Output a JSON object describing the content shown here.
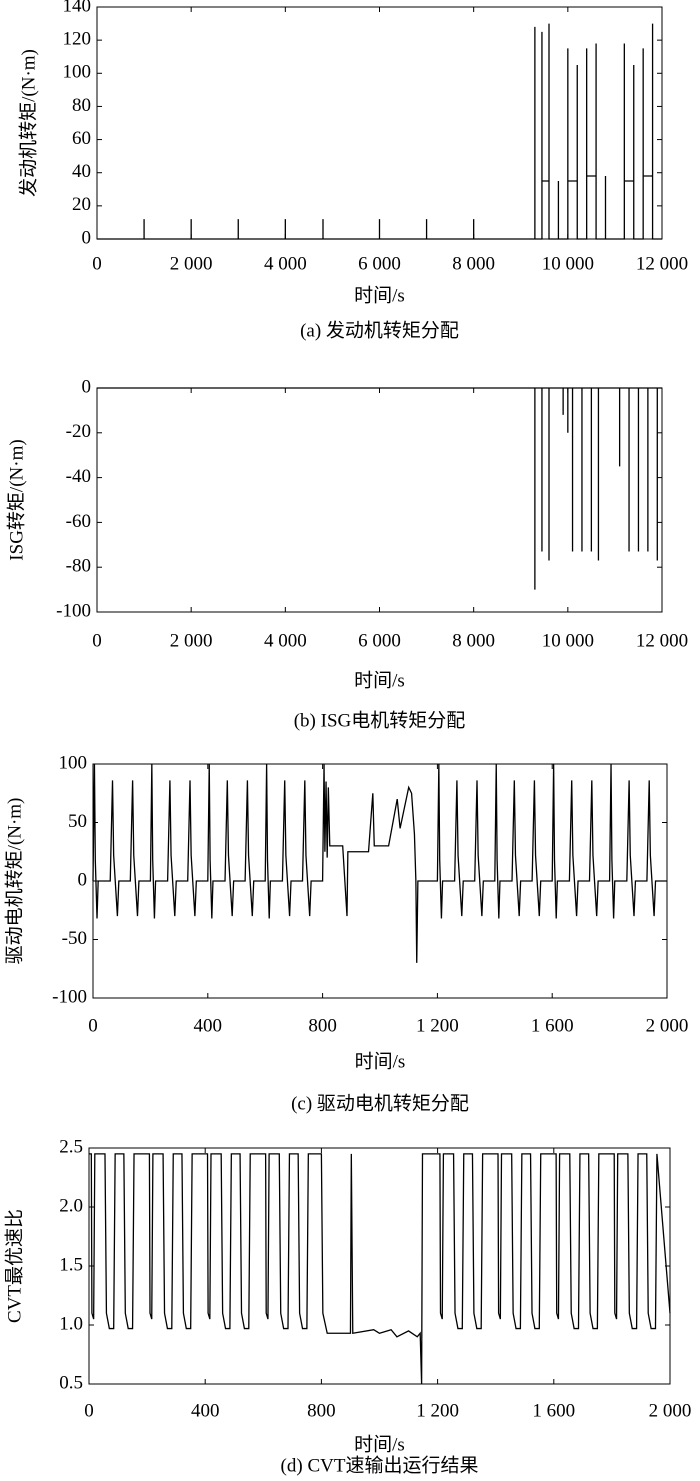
{
  "chart_data": [
    {
      "type": "line",
      "caption": "(a) 发动机转矩分配",
      "xlabel": "时间/s",
      "ylabel": "发动机转矩/(N·m)",
      "color": "#000000",
      "xlim": [
        0,
        12000
      ],
      "ylim": [
        0,
        140
      ],
      "xticks": [
        0,
        {
          "value": 2000,
          "label": "2 000"
        },
        {
          "value": 4000,
          "label": "4 000"
        },
        {
          "value": 6000,
          "label": "6 000"
        },
        {
          "value": 8000,
          "label": "8 000"
        },
        {
          "value": 10000,
          "label": "10 000"
        },
        {
          "value": 12000,
          "label": "12 000"
        }
      ],
      "yticks": [
        0,
        20,
        40,
        60,
        80,
        100,
        120,
        140
      ],
      "x": [
        0,
        1000,
        1000,
        1000,
        2000,
        2000,
        2000,
        3000,
        3000,
        3000,
        4000,
        4000,
        4000,
        4800,
        4800,
        4800,
        6000,
        6000,
        6000,
        7000,
        7000,
        7000,
        8000,
        8000,
        8000,
        9300,
        9300,
        9300,
        9450,
        9450,
        9450,
        9600,
        9600,
        9600,
        9800,
        9800,
        9800,
        10000,
        10000,
        10000,
        10200,
        10200,
        10200,
        10400,
        10400,
        10400,
        10600,
        10600,
        10600,
        10800,
        10800,
        10800,
        11200,
        11200,
        11200,
        11400,
        11400,
        11400,
        11600,
        11600,
        11600,
        11800,
        11800,
        11800,
        12000
      ],
      "values": [
        0,
        0,
        12,
        0,
        0,
        12,
        0,
        0,
        12,
        0,
        0,
        12,
        0,
        0,
        12,
        0,
        0,
        12,
        0,
        0,
        12,
        0,
        0,
        12,
        0,
        0,
        128,
        0,
        0,
        125,
        35,
        35,
        130,
        0,
        0,
        35,
        0,
        0,
        115,
        35,
        35,
        105,
        0,
        0,
        115,
        38,
        38,
        118,
        0,
        0,
        38,
        0,
        0,
        118,
        35,
        35,
        105,
        0,
        0,
        115,
        38,
        38,
        130,
        0,
        0
      ]
    },
    {
      "type": "line",
      "caption": "(b) ISG电机转矩分配",
      "xlabel": "时间/s",
      "ylabel": "ISG转矩/(N·m)",
      "color": "#000000",
      "xlim": [
        0,
        12000
      ],
      "ylim": [
        -100,
        0
      ],
      "xticks": [
        0,
        {
          "value": 2000,
          "label": "2 000"
        },
        {
          "value": 4000,
          "label": "4 000"
        },
        {
          "value": 6000,
          "label": "6 000"
        },
        {
          "value": 8000,
          "label": "8 000"
        },
        {
          "value": 10000,
          "label": "10 000"
        },
        {
          "value": 12000,
          "label": "12 000"
        }
      ],
      "yticks": [
        -100,
        -80,
        -60,
        -40,
        -20,
        0
      ],
      "x": [
        0,
        9300,
        9300,
        9300,
        9450,
        9450,
        9450,
        9600,
        9600,
        9600,
        9900,
        9900,
        9900,
        10000,
        10000,
        10000,
        10100,
        10100,
        10100,
        10300,
        10300,
        10300,
        10500,
        10500,
        10500,
        10650,
        10650,
        10650,
        11100,
        11100,
        11100,
        11300,
        11300,
        11300,
        11500,
        11500,
        11500,
        11700,
        11700,
        11700,
        11900,
        11900,
        11900,
        12000
      ],
      "values": [
        0,
        0,
        -90,
        0,
        0,
        -73,
        0,
        0,
        -77,
        0,
        0,
        -12,
        0,
        0,
        -20,
        0,
        0,
        -73,
        0,
        0,
        -73,
        0,
        0,
        -73,
        0,
        0,
        -77,
        0,
        0,
        -35,
        0,
        0,
        -73,
        0,
        0,
        -73,
        0,
        0,
        -73,
        0,
        0,
        -77,
        0,
        0
      ]
    },
    {
      "type": "line",
      "caption": "(c) 驱动电机转矩分配",
      "xlabel": "时间/s",
      "ylabel": "驱动电机转矩/(N·m)",
      "color": "#000000",
      "xlim": [
        0,
        2000
      ],
      "ylim": [
        -100,
        100
      ],
      "xticks": [
        0,
        400,
        800,
        {
          "value": 1200,
          "label": "1 200"
        },
        {
          "value": 1600,
          "label": "1 600"
        },
        {
          "value": 2000,
          "label": "2 000"
        }
      ],
      "yticks": [
        -100,
        -50,
        0,
        50,
        100
      ],
      "x": [
        0,
        5,
        8,
        14,
        18,
        60,
        68,
        72,
        85,
        90,
        130,
        138,
        142,
        155,
        160,
        200,
        205,
        208,
        214,
        218,
        260,
        268,
        272,
        285,
        290,
        330,
        338,
        342,
        355,
        360,
        400,
        405,
        408,
        414,
        418,
        460,
        468,
        472,
        485,
        490,
        530,
        538,
        542,
        555,
        560,
        600,
        605,
        608,
        614,
        618,
        660,
        668,
        672,
        685,
        690,
        730,
        738,
        742,
        755,
        760,
        800,
        805,
        808,
        812,
        816,
        820,
        825,
        870,
        885,
        888,
        960,
        975,
        980,
        1030,
        1060,
        1070,
        1100,
        1110,
        1120,
        1125,
        1128,
        1132,
        1200,
        1205,
        1208,
        1214,
        1218,
        1260,
        1268,
        1272,
        1285,
        1290,
        1330,
        1338,
        1342,
        1355,
        1360,
        1400,
        1405,
        1408,
        1414,
        1418,
        1460,
        1468,
        1472,
        1485,
        1490,
        1530,
        1538,
        1542,
        1555,
        1560,
        1600,
        1605,
        1608,
        1614,
        1618,
        1660,
        1668,
        1672,
        1685,
        1690,
        1730,
        1738,
        1742,
        1755,
        1760,
        1800,
        1805,
        1808,
        1814,
        1818,
        1860,
        1868,
        1872,
        1885,
        1890,
        1930,
        1938,
        1942,
        1955,
        1960,
        2000
      ],
      "values": [
        0,
        100,
        18,
        -32,
        0,
        0,
        86,
        22,
        -30,
        0,
        0,
        86,
        22,
        -30,
        0,
        0,
        100,
        18,
        -32,
        0,
        0,
        86,
        22,
        -30,
        0,
        0,
        86,
        22,
        -30,
        0,
        0,
        100,
        18,
        -32,
        0,
        0,
        86,
        22,
        -30,
        0,
        0,
        86,
        22,
        -30,
        0,
        0,
        100,
        18,
        -32,
        0,
        0,
        86,
        22,
        -30,
        0,
        0,
        86,
        22,
        -30,
        0,
        0,
        100,
        25,
        85,
        20,
        80,
        30,
        30,
        -30,
        25,
        25,
        75,
        30,
        30,
        70,
        45,
        80,
        75,
        40,
        0,
        -70,
        0,
        0,
        100,
        18,
        -32,
        0,
        0,
        86,
        22,
        -30,
        0,
        0,
        86,
        22,
        -30,
        0,
        0,
        100,
        18,
        -32,
        0,
        0,
        86,
        22,
        -30,
        0,
        0,
        86,
        22,
        -30,
        0,
        0,
        100,
        18,
        -32,
        0,
        0,
        86,
        22,
        -30,
        0,
        0,
        86,
        22,
        -30,
        0,
        0,
        100,
        18,
        -32,
        0,
        0,
        86,
        22,
        -30,
        0,
        0,
        86,
        22,
        -30,
        0,
        0
      ]
    },
    {
      "type": "line",
      "caption": "(d) CVT速输出运行结果",
      "xlabel": "时间/s",
      "ylabel": "CVT最优速比",
      "color": "#000000",
      "xlim": [
        0,
        2000
      ],
      "ylim": [
        0.5,
        2.5
      ],
      "xticks": [
        0,
        400,
        800,
        {
          "value": 1200,
          "label": "1 200"
        },
        {
          "value": 1600,
          "label": "1 600"
        },
        {
          "value": 2000,
          "label": "2 000"
        }
      ],
      "yticks": [
        0.5,
        {
          "value": 1,
          "label": "1.0"
        },
        1.5,
        {
          "value": 2,
          "label": "2.0"
        },
        2.5
      ],
      "x": [
        0,
        8,
        10,
        16,
        20,
        55,
        60,
        70,
        85,
        90,
        120,
        125,
        135,
        150,
        155,
        200,
        208,
        210,
        216,
        220,
        255,
        260,
        270,
        285,
        290,
        320,
        325,
        335,
        350,
        355,
        400,
        408,
        410,
        416,
        420,
        455,
        460,
        470,
        485,
        490,
        520,
        525,
        535,
        550,
        555,
        600,
        608,
        610,
        616,
        620,
        655,
        660,
        670,
        685,
        690,
        720,
        725,
        735,
        750,
        755,
        800,
        805,
        820,
        900,
        903,
        908,
        980,
        1000,
        1040,
        1060,
        1100,
        1130,
        1140,
        1145,
        1148,
        1200,
        1208,
        1210,
        1216,
        1220,
        1255,
        1260,
        1270,
        1285,
        1290,
        1320,
        1325,
        1335,
        1350,
        1355,
        1400,
        1408,
        1410,
        1416,
        1420,
        1455,
        1460,
        1470,
        1485,
        1490,
        1520,
        1525,
        1535,
        1550,
        1555,
        1600,
        1608,
        1610,
        1616,
        1620,
        1655,
        1660,
        1670,
        1685,
        1690,
        1720,
        1725,
        1735,
        1750,
        1755,
        1800,
        1808,
        1810,
        1816,
        1820,
        1855,
        1860,
        1870,
        1885,
        1890,
        1920,
        1925,
        1935,
        1950,
        1955,
        2000
      ],
      "values": [
        2.45,
        2.45,
        1.1,
        1.05,
        2.45,
        2.45,
        1.1,
        0.97,
        0.97,
        2.45,
        2.45,
        1.1,
        0.97,
        0.97,
        2.45,
        2.45,
        2.45,
        1.1,
        1.05,
        2.45,
        2.45,
        1.1,
        0.97,
        0.97,
        2.45,
        2.45,
        1.1,
        0.97,
        0.97,
        2.45,
        2.45,
        2.45,
        1.1,
        1.05,
        2.45,
        2.45,
        1.1,
        0.97,
        0.97,
        2.45,
        2.45,
        1.1,
        0.97,
        0.97,
        2.45,
        2.45,
        2.45,
        1.1,
        1.05,
        2.45,
        2.45,
        1.1,
        0.97,
        0.97,
        2.45,
        2.45,
        1.1,
        0.97,
        0.97,
        2.45,
        2.45,
        1.1,
        0.93,
        0.93,
        2.45,
        0.93,
        0.96,
        0.93,
        0.96,
        0.9,
        0.95,
        0.9,
        0.93,
        0.5,
        2.45,
        2.45,
        2.45,
        1.1,
        1.05,
        2.45,
        2.45,
        1.1,
        0.97,
        0.97,
        2.45,
        2.45,
        1.1,
        0.97,
        0.97,
        2.45,
        2.45,
        2.45,
        1.1,
        1.05,
        2.45,
        2.45,
        1.1,
        0.97,
        0.97,
        2.45,
        2.45,
        1.1,
        0.97,
        0.97,
        2.45,
        2.45,
        2.45,
        1.1,
        1.05,
        2.45,
        2.45,
        1.1,
        0.97,
        0.97,
        2.45,
        2.45,
        1.1,
        0.97,
        0.97,
        2.45,
        2.45,
        2.45,
        1.1,
        1.05,
        2.45,
        2.45,
        1.1,
        0.97,
        0.97,
        2.45,
        2.45,
        1.1,
        0.97,
        0.97,
        2.45,
        1.1
      ]
    }
  ]
}
